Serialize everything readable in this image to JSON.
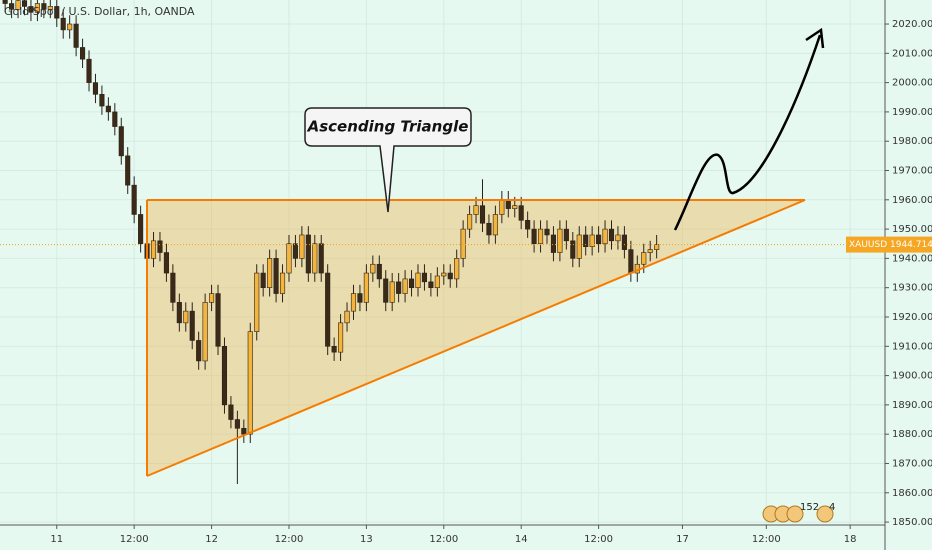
{
  "chart_data": {
    "type": "candlestick",
    "title": "Gold Spot / U.S. Dollar, 1h, OANDA",
    "symbol": "XAUUSD",
    "annotation": "Ascending Triangle",
    "badges": [
      152,
      4
    ],
    "up_color": "#f5b43c",
    "down_color": "#3b2a18",
    "wick_color": "#2b2118",
    "background": "#e6f9f1",
    "x": [
      -8,
      -7,
      -6,
      -5,
      -4,
      -3,
      -2,
      -1,
      0,
      1,
      2,
      3,
      4,
      5,
      6,
      7,
      8,
      9,
      10,
      11,
      12,
      13,
      14,
      15,
      16,
      17,
      18,
      19,
      20,
      21,
      22,
      23,
      24,
      25,
      26,
      27,
      28,
      29,
      30,
      31,
      32,
      33,
      34,
      35,
      36,
      37,
      38,
      39,
      40,
      41,
      42,
      43,
      44,
      45,
      46,
      47,
      48,
      49,
      50,
      51,
      52,
      53,
      54,
      55,
      56,
      57,
      58,
      59,
      60,
      61,
      62,
      63,
      64,
      65,
      66,
      67,
      68,
      69,
      70,
      71,
      72,
      73,
      74,
      75,
      76,
      77,
      78,
      79,
      80,
      81,
      82,
      83,
      84,
      85,
      86,
      87,
      88,
      89,
      90,
      91,
      92,
      93
    ],
    "open": [
      2029,
      2027,
      2025,
      2028,
      2026,
      2024,
      2027,
      2025,
      2026,
      2022,
      2018,
      2020,
      2012,
      2008,
      2000,
      1996,
      1992,
      1990,
      1985,
      1975,
      1965,
      1955,
      1945,
      1940,
      1946,
      1942,
      1935,
      1925,
      1918,
      1922,
      1912,
      1905,
      1925,
      1928,
      1910,
      1890,
      1885,
      1882,
      1880,
      1915,
      1935,
      1930,
      1940,
      1928,
      1935,
      1945,
      1940,
      1948,
      1935,
      1945,
      1935,
      1910,
      1908,
      1918,
      1922,
      1928,
      1925,
      1935,
      1938,
      1933,
      1925,
      1932,
      1928,
      1933,
      1930,
      1935,
      1932,
      1930,
      1934,
      1935,
      1933,
      1940,
      1950,
      1955,
      1958,
      1952,
      1948,
      1955,
      1960,
      1957,
      1958,
      1953,
      1950,
      1945,
      1950,
      1948,
      1942,
      1950,
      1946,
      1940,
      1948,
      1944,
      1948,
      1945,
      1950,
      1946,
      1948,
      1943,
      1935,
      1938,
      1942,
      1943
    ],
    "high": [
      2032,
      2030,
      2031,
      2031,
      2029,
      2030,
      2030,
      2029,
      2029,
      2025,
      2023,
      2023,
      2015,
      2011,
      2003,
      1999,
      1995,
      1993,
      1988,
      1978,
      1968,
      1958,
      1948,
      1949,
      1949,
      1945,
      1938,
      1928,
      1925,
      1925,
      1915,
      1928,
      1931,
      1931,
      1913,
      1893,
      1888,
      1885,
      1918,
      1938,
      1938,
      1943,
      1943,
      1938,
      1948,
      1948,
      1951,
      1951,
      1948,
      1948,
      1938,
      1913,
      1921,
      1925,
      1931,
      1931,
      1938,
      1941,
      1941,
      1936,
      1935,
      1935,
      1936,
      1936,
      1938,
      1938,
      1935,
      1937,
      1938,
      1938,
      1943,
      1953,
      1958,
      1961,
      1967,
      1955,
      1958,
      1963,
      1963,
      1961,
      1961,
      1956,
      1953,
      1953,
      1953,
      1951,
      1953,
      1953,
      1949,
      1951,
      1951,
      1951,
      1951,
      1953,
      1953,
      1951,
      1951,
      1946,
      1941,
      1945,
      1946,
      1948
    ],
    "low": [
      2024,
      2022,
      2022,
      2023,
      2021,
      2021,
      2022,
      2022,
      2019,
      2015,
      2015,
      2009,
      2005,
      1997,
      1993,
      1989,
      1987,
      1982,
      1972,
      1962,
      1952,
      1942,
      1937,
      1937,
      1939,
      1932,
      1922,
      1915,
      1915,
      1909,
      1902,
      1902,
      1922,
      1907,
      1887,
      1882,
      1863,
      1877,
      1877,
      1912,
      1927,
      1927,
      1925,
      1925,
      1932,
      1937,
      1937,
      1932,
      1932,
      1932,
      1907,
      1905,
      1905,
      1915,
      1919,
      1922,
      1922,
      1932,
      1930,
      1922,
      1922,
      1925,
      1925,
      1927,
      1927,
      1929,
      1927,
      1927,
      1931,
      1930,
      1930,
      1937,
      1947,
      1952,
      1949,
      1945,
      1945,
      1952,
      1954,
      1954,
      1950,
      1947,
      1942,
      1942,
      1945,
      1939,
      1939,
      1943,
      1937,
      1937,
      1941,
      1941,
      1942,
      1942,
      1943,
      1943,
      1940,
      1932,
      1932,
      1935,
      1939,
      1940
    ],
    "close": [
      2027,
      2025,
      2028,
      2026,
      2024,
      2027,
      2025,
      2026,
      2022,
      2018,
      2020,
      2012,
      2008,
      2000,
      1996,
      1992,
      1990,
      1985,
      1975,
      1965,
      1955,
      1945,
      1940,
      1946,
      1942,
      1935,
      1925,
      1918,
      1922,
      1912,
      1905,
      1925,
      1928,
      1910,
      1890,
      1885,
      1882,
      1880,
      1915,
      1935,
      1930,
      1940,
      1928,
      1935,
      1945,
      1940,
      1948,
      1935,
      1945,
      1935,
      1910,
      1908,
      1918,
      1922,
      1928,
      1925,
      1935,
      1938,
      1933,
      1925,
      1932,
      1928,
      1933,
      1930,
      1935,
      1932,
      1930,
      1934,
      1935,
      1933,
      1940,
      1950,
      1955,
      1958,
      1952,
      1948,
      1955,
      1960,
      1957,
      1958,
      1953,
      1950,
      1945,
      1950,
      1948,
      1942,
      1950,
      1946,
      1940,
      1948,
      1944,
      1948,
      1945,
      1950,
      1946,
      1948,
      1943,
      1935,
      1938,
      1942,
      1943,
      1944.714
    ],
    "xlim": [
      -8.8,
      128.4
    ],
    "ylim": [
      1849,
      2028.2
    ],
    "xticks": [
      {
        "value": 0,
        "label": "11"
      },
      {
        "value": 12,
        "label": "12:00"
      },
      {
        "value": 24,
        "label": "12"
      },
      {
        "value": 36,
        "label": "12:00"
      },
      {
        "value": 48,
        "label": "13"
      },
      {
        "value": 60,
        "label": "12:00"
      },
      {
        "value": 72,
        "label": "14"
      },
      {
        "value": 84,
        "label": "12:00"
      },
      {
        "value": 97,
        "label": "17"
      },
      {
        "value": 110,
        "label": "12:00"
      },
      {
        "value": 123,
        "label": "18"
      }
    ],
    "yticks": [
      {
        "value": 1850,
        "label": "1850.000"
      },
      {
        "value": 1860,
        "label": "1860.000"
      },
      {
        "value": 1870,
        "label": "1870.000"
      },
      {
        "value": 1880,
        "label": "1880.000"
      },
      {
        "value": 1890,
        "label": "1890.000"
      },
      {
        "value": 1900,
        "label": "1900.000"
      },
      {
        "value": 1910,
        "label": "1910.000"
      },
      {
        "value": 1920,
        "label": "1920.000"
      },
      {
        "value": 1930,
        "label": "1930.000"
      },
      {
        "value": 1940,
        "label": "1940.000"
      },
      {
        "value": 1950,
        "label": "1950.000"
      },
      {
        "value": 1960,
        "label": "1960.000"
      },
      {
        "value": 1970,
        "label": "1970.000"
      },
      {
        "value": 1980,
        "label": "1980.000"
      },
      {
        "value": 1990,
        "label": "1990.000"
      },
      {
        "value": 2000,
        "label": "2000.000"
      },
      {
        "value": 2010,
        "label": "2010.000"
      },
      {
        "value": 2020,
        "label": "2020.000"
      }
    ],
    "grid": true
  }
}
